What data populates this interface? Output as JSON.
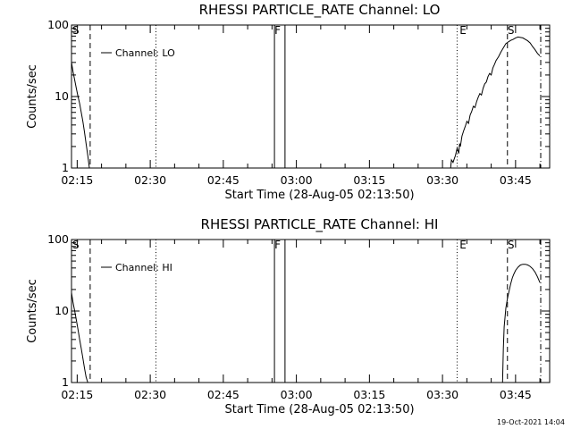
{
  "footer_timestamp": "19-Oct-2021 14:04",
  "chart_data": [
    {
      "type": "line",
      "title": "RHESSI PARTICLE_RATE Channel: LO",
      "xlabel": "Start Time (28-Aug-05 02:13:50)",
      "ylabel": "Counts/sec",
      "y_scale": "log",
      "ylim": [
        1,
        100
      ],
      "xlim": [
        "02:13:50",
        "03:52:00"
      ],
      "yticks": [
        "1",
        "10",
        "100"
      ],
      "xticks": [
        "02:15",
        "02:30",
        "02:45",
        "03:00",
        "03:15",
        "03:30",
        "03:45"
      ],
      "legend": {
        "position": "top-left",
        "entries": [
          "Channel: LO"
        ]
      },
      "markers": [
        {
          "label": "S",
          "time": "02:13:50"
        },
        {
          "label": "F",
          "time": "02:55:20"
        },
        {
          "label": "E",
          "time": "03:33:20"
        },
        {
          "label": "S",
          "time": "03:43:10"
        }
      ],
      "vertical_lines": [
        {
          "time": "02:17:40",
          "style": "dashed"
        },
        {
          "time": "02:31:10",
          "style": "dotted"
        },
        {
          "time": "02:55:30",
          "style": "solid"
        },
        {
          "time": "02:57:40",
          "style": "solid"
        },
        {
          "time": "03:33:00",
          "style": "dotted"
        },
        {
          "time": "03:43:20",
          "style": "dashed"
        },
        {
          "time": "03:50:10",
          "style": "dash-dot"
        }
      ],
      "series": [
        {
          "name": "Channel: LO",
          "segments": [
            {
              "x": [
                "02:13:50",
                "02:14:10",
                "02:14:30",
                "02:14:50",
                "02:15:10",
                "02:15:30",
                "02:15:50",
                "02:16:10",
                "02:16:30",
                "02:16:50",
                "02:17:10",
                "02:17:30"
              ],
              "y": [
                30,
                22,
                17,
                13,
                10,
                8,
                6,
                4.5,
                3.2,
                2.2,
                1.5,
                1
              ]
            },
            {
              "x": [
                "03:31:40",
                "03:31:50",
                "03:32:10",
                "03:32:40",
                "03:33:00",
                "03:33:20",
                "03:33:30",
                "03:33:40",
                "03:34:00",
                "03:34:20",
                "03:34:40",
                "03:35:00",
                "03:35:20",
                "03:35:40",
                "03:36:00",
                "03:36:20",
                "03:36:40",
                "03:37:00",
                "03:37:20",
                "03:37:40",
                "03:38:00",
                "03:38:20",
                "03:38:40",
                "03:39:00",
                "03:39:20",
                "03:39:40",
                "03:40:00",
                "03:40:20",
                "03:40:40",
                "03:41:00",
                "03:41:30",
                "03:42:00",
                "03:42:30",
                "03:43:00",
                "03:43:30",
                "03:44:00",
                "03:44:30",
                "03:45:00",
                "03:45:30",
                "03:46:00",
                "03:46:30",
                "03:47:00",
                "03:47:30",
                "03:48:00",
                "03:48:30",
                "03:49:00",
                "03:49:30",
                "03:50:00"
              ],
              "y": [
                1,
                1.3,
                1.2,
                1.5,
                1.9,
                1.6,
                2.2,
                2.0,
                2.8,
                3.3,
                3.8,
                4.5,
                4.2,
                5.5,
                6.2,
                7.3,
                7.0,
                8.5,
                9.8,
                11,
                10.5,
                13,
                15,
                16,
                19,
                21,
                20,
                25,
                28,
                32,
                36,
                42,
                48,
                55,
                58,
                61,
                63,
                66,
                68,
                67,
                66,
                63,
                60,
                56,
                50,
                45,
                40,
                37
              ]
            }
          ]
        }
      ]
    },
    {
      "type": "line",
      "title": "RHESSI PARTICLE_RATE Channel: HI",
      "xlabel": "Start Time (28-Aug-05 02:13:50)",
      "ylabel": "Counts/sec",
      "y_scale": "log",
      "ylim": [
        1,
        100
      ],
      "xlim": [
        "02:13:50",
        "03:52:00"
      ],
      "yticks": [
        "1",
        "10",
        "100"
      ],
      "xticks": [
        "02:15",
        "02:30",
        "02:45",
        "03:00",
        "03:15",
        "03:30",
        "03:45"
      ],
      "legend": {
        "position": "top-left",
        "entries": [
          "Channel: HI"
        ]
      },
      "markers": [
        {
          "label": "S",
          "time": "02:13:50"
        },
        {
          "label": "F",
          "time": "02:55:20"
        },
        {
          "label": "E",
          "time": "03:33:20"
        },
        {
          "label": "S",
          "time": "03:43:10"
        }
      ],
      "vertical_lines": [
        {
          "time": "02:17:40",
          "style": "dashed"
        },
        {
          "time": "02:31:10",
          "style": "dotted"
        },
        {
          "time": "02:55:30",
          "style": "solid"
        },
        {
          "time": "02:57:40",
          "style": "solid"
        },
        {
          "time": "03:33:00",
          "style": "dotted"
        },
        {
          "time": "03:43:20",
          "style": "dashed"
        },
        {
          "time": "03:50:10",
          "style": "dash-dot"
        }
      ],
      "series": [
        {
          "name": "Channel: HI",
          "segments": [
            {
              "x": [
                "02:13:50",
                "02:14:10",
                "02:14:30",
                "02:14:50",
                "02:15:10",
                "02:15:30",
                "02:15:50",
                "02:16:10",
                "02:16:30",
                "02:16:50",
                "02:17:10"
              ],
              "y": [
                18,
                13,
                10,
                7.5,
                5.5,
                4,
                3,
                2.2,
                1.6,
                1.2,
                1
              ]
            },
            {
              "x": [
                "03:42:20",
                "03:42:30",
                "03:42:40",
                "03:43:00",
                "03:43:20",
                "03:43:40",
                "03:44:00",
                "03:44:20",
                "03:44:40",
                "03:45:00",
                "03:45:30",
                "03:46:00",
                "03:46:30",
                "03:47:00",
                "03:47:30",
                "03:48:00",
                "03:48:30",
                "03:49:00",
                "03:49:30",
                "03:50:00"
              ],
              "y": [
                1,
                3,
                6,
                11,
                15,
                19,
                24,
                29,
                33,
                37,
                41,
                44,
                45,
                45,
                44,
                42,
                39,
                35,
                30,
                25
              ]
            }
          ]
        }
      ]
    }
  ]
}
